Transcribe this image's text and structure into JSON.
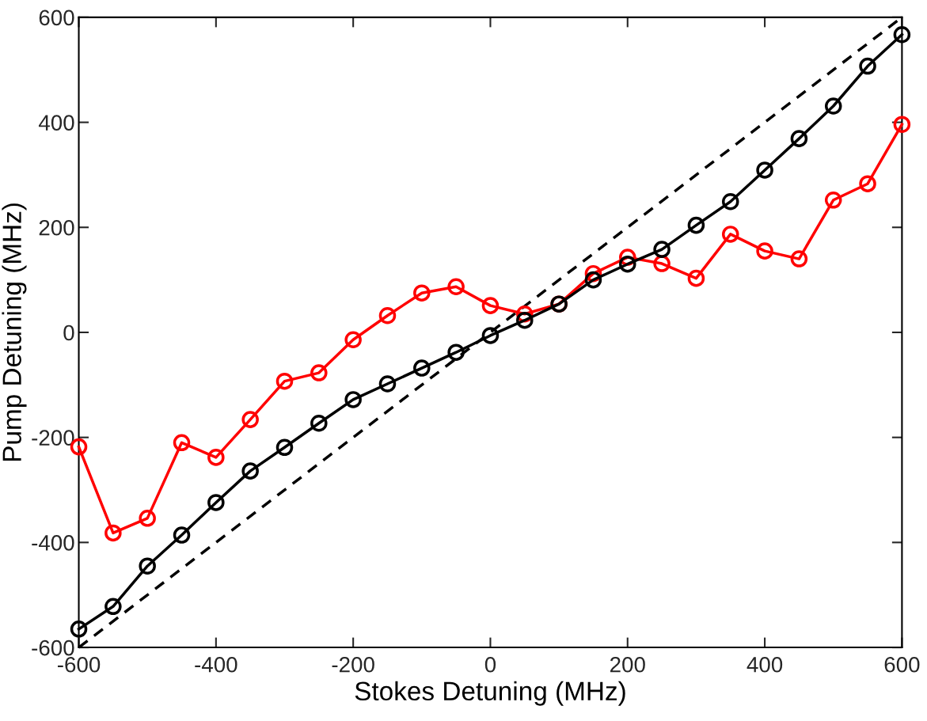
{
  "chart_data": {
    "type": "line",
    "xlabel": "Stokes Detuning (MHz)",
    "ylabel": "Pump Detuning (MHz)",
    "xlim": [
      -600,
      600
    ],
    "ylim": [
      -600,
      600
    ],
    "xticks": [
      -600,
      -400,
      -200,
      0,
      200,
      400,
      600
    ],
    "yticks": [
      -600,
      -400,
      -200,
      0,
      200,
      400,
      600
    ],
    "grid": false,
    "series": [
      {
        "color": "#000000",
        "x": [
          -600,
          600
        ],
        "values": [
          -600,
          600
        ],
        "line_style": "dashed",
        "marker": "none"
      },
      {
        "color": "#ff0000",
        "marker": "circle",
        "line_style": "solid",
        "x": [
          -600,
          -550,
          -500,
          -450,
          -400,
          -350,
          -300,
          -250,
          -200,
          -150,
          -100,
          -50,
          0,
          50,
          100,
          150,
          200,
          250,
          300,
          350,
          400,
          450,
          500,
          550,
          600
        ],
        "values": [
          -218,
          -382,
          -354,
          -210,
          -238,
          -166,
          -93,
          -77,
          -14,
          32,
          75,
          87,
          51,
          35,
          54,
          112,
          143,
          131,
          103,
          187,
          155,
          140,
          252,
          283,
          396
        ]
      },
      {
        "color": "#000000",
        "marker": "circle",
        "line_style": "solid",
        "x": [
          -600,
          -550,
          -500,
          -450,
          -400,
          -350,
          -300,
          -250,
          -200,
          -150,
          -100,
          -50,
          0,
          50,
          100,
          150,
          200,
          250,
          300,
          350,
          400,
          450,
          500,
          550,
          600
        ],
        "values": [
          -565,
          -522,
          -445,
          -386,
          -324,
          -264,
          -219,
          -173,
          -128,
          -98,
          -68,
          -38,
          -6,
          23,
          54,
          100,
          130,
          158,
          204,
          249,
          309,
          369,
          431,
          507,
          567
        ]
      }
    ]
  }
}
